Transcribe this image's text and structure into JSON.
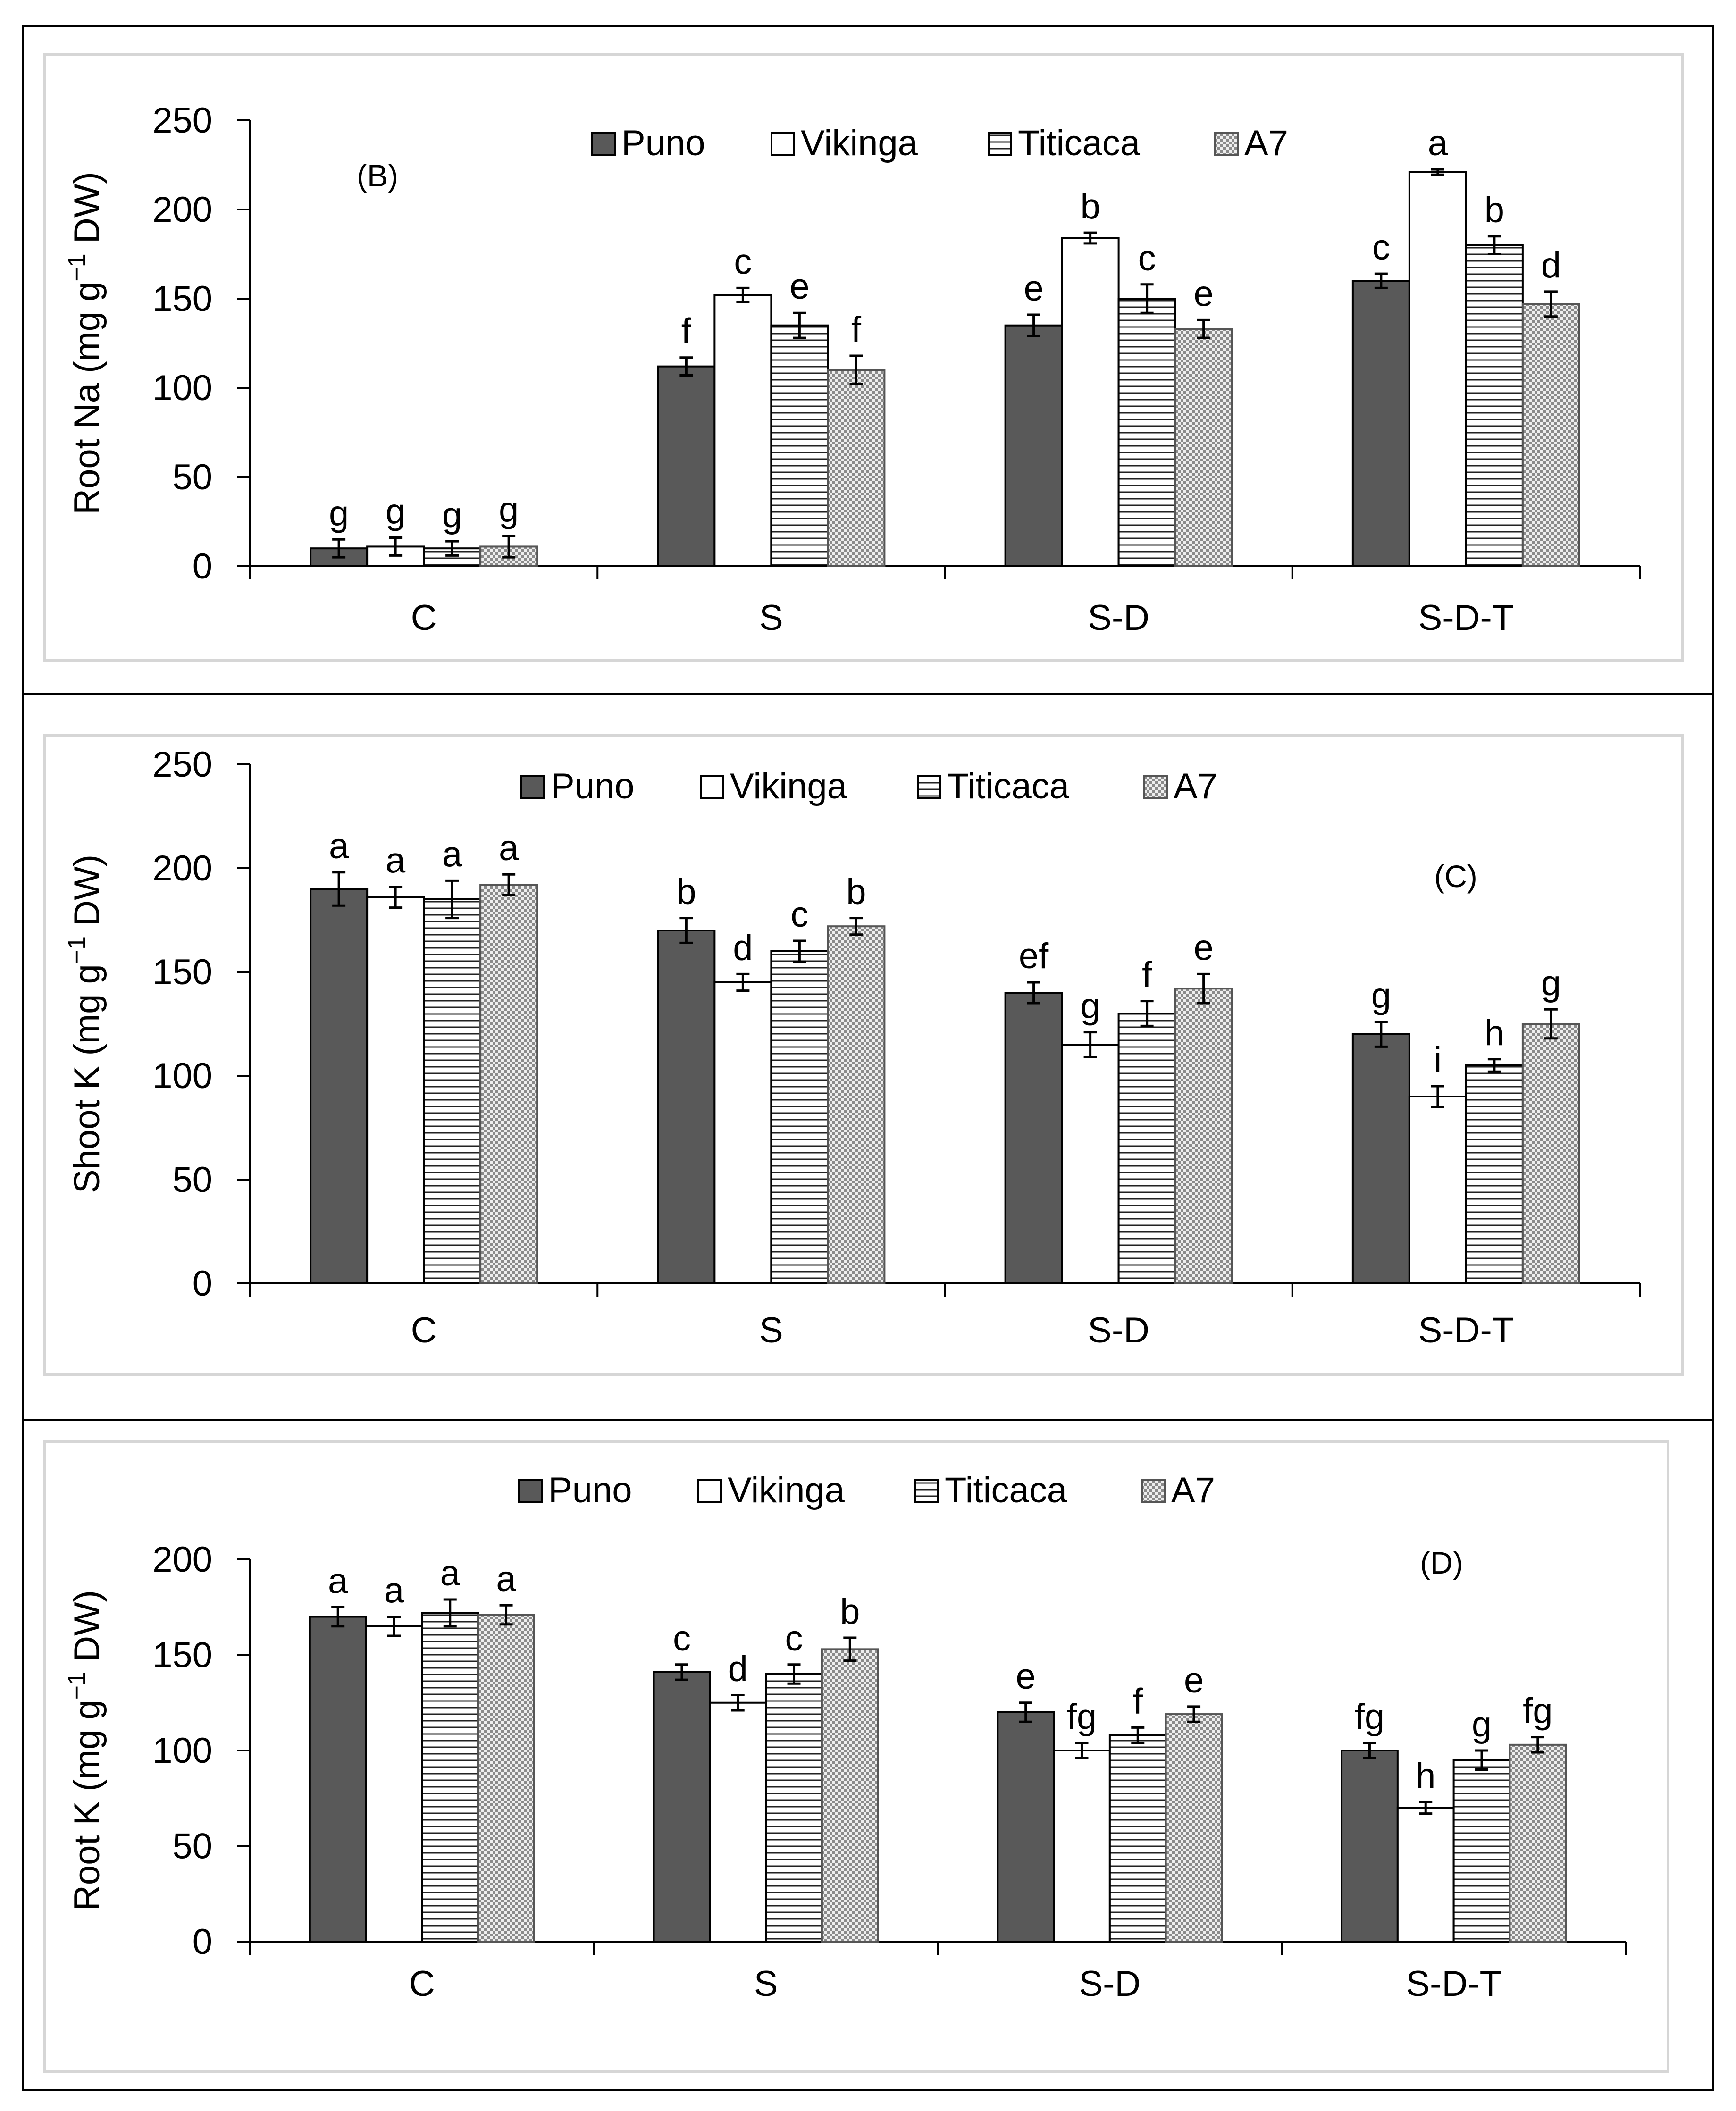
{
  "chart_data": [
    {
      "type": "bar",
      "panel_label": "(B)",
      "title": "",
      "xlabel": "",
      "ylabel_prefix": "Root Na (mg g",
      "ylabel_sup": "−1",
      "ylabel_suffix": " DW)",
      "ylim": [
        0,
        250
      ],
      "yticks": [
        "0",
        "50",
        "100",
        "150",
        "200",
        "250"
      ],
      "categories": [
        "C",
        "S",
        "S-D",
        "S-D-T"
      ],
      "series": [
        {
          "name": "Puno",
          "values": [
            10,
            112,
            135,
            160
          ],
          "errors": [
            5,
            5,
            6,
            4
          ],
          "letters": [
            "g",
            "f",
            "e",
            "c"
          ]
        },
        {
          "name": "Vikinga",
          "values": [
            11,
            152,
            184,
            221
          ],
          "errors": [
            5,
            4,
            3,
            1.5
          ],
          "letters": [
            "g",
            "c",
            "b",
            "a"
          ]
        },
        {
          "name": "Titicaca",
          "values": [
            10,
            135,
            150,
            180
          ],
          "errors": [
            4,
            7,
            8,
            5
          ],
          "letters": [
            "g",
            "e",
            "c",
            "b"
          ]
        },
        {
          "name": "A7",
          "values": [
            11,
            110,
            133,
            147
          ],
          "errors": [
            6,
            8,
            5,
            7
          ],
          "letters": [
            "g",
            "f",
            "e",
            "d"
          ]
        }
      ]
    },
    {
      "type": "bar",
      "panel_label": "(C)",
      "title": "",
      "xlabel": "",
      "ylabel_prefix": "Shoot K (mg g",
      "ylabel_sup": "−1",
      "ylabel_suffix": " DW)",
      "ylim": [
        0,
        250
      ],
      "yticks": [
        "0",
        "50",
        "100",
        "150",
        "200",
        "250"
      ],
      "categories": [
        "C",
        "S",
        "S-D",
        "S-D-T"
      ],
      "series": [
        {
          "name": "Puno",
          "values": [
            190,
            170,
            140,
            120
          ],
          "errors": [
            8,
            6,
            5,
            6
          ],
          "letters": [
            "a",
            "b",
            "ef",
            "g"
          ]
        },
        {
          "name": "Vikinga",
          "values": [
            186,
            145,
            115,
            90
          ],
          "errors": [
            5,
            4,
            6,
            5
          ],
          "letters": [
            "a",
            "d",
            "g",
            "i"
          ]
        },
        {
          "name": "Titicaca",
          "values": [
            185,
            160,
            130,
            105
          ],
          "errors": [
            9,
            5,
            6,
            3
          ],
          "letters": [
            "a",
            "c",
            "f",
            "h"
          ]
        },
        {
          "name": "A7",
          "values": [
            192,
            172,
            142,
            125
          ],
          "errors": [
            5,
            4,
            7,
            7
          ],
          "letters": [
            "a",
            "b",
            "e",
            "g"
          ]
        }
      ]
    },
    {
      "type": "bar",
      "panel_label": "(D)",
      "title": "",
      "xlabel": "",
      "ylabel_prefix": "Root K (mg g",
      "ylabel_sup": "−1",
      "ylabel_suffix": " DW)",
      "ylim": [
        0,
        200
      ],
      "yticks": [
        "0",
        "50",
        "100",
        "150",
        "200"
      ],
      "categories": [
        "C",
        "S",
        "S-D",
        "S-D-T"
      ],
      "series": [
        {
          "name": "Puno",
          "values": [
            170,
            141,
            120,
            100
          ],
          "errors": [
            5,
            4,
            5,
            4
          ],
          "letters": [
            "a",
            "c",
            "e",
            "fg"
          ]
        },
        {
          "name": "Vikinga",
          "values": [
            165,
            125,
            100,
            70
          ],
          "errors": [
            5,
            4,
            4,
            3
          ],
          "letters": [
            "a",
            "d",
            "fg",
            "h"
          ]
        },
        {
          "name": "Titicaca",
          "values": [
            172,
            140,
            108,
            95
          ],
          "errors": [
            7,
            5,
            4,
            5
          ],
          "letters": [
            "a",
            "c",
            "f",
            "g"
          ]
        },
        {
          "name": "A7",
          "values": [
            171,
            153,
            119,
            103
          ],
          "errors": [
            5,
            6,
            4,
            4
          ],
          "letters": [
            "a",
            "b",
            "e",
            "fg"
          ]
        }
      ]
    }
  ],
  "legend_colors": {
    "Puno": "#595959",
    "Vikinga": "#ffffff",
    "Titicaca": "#ffffff",
    "A7": "#cfcfcf"
  }
}
